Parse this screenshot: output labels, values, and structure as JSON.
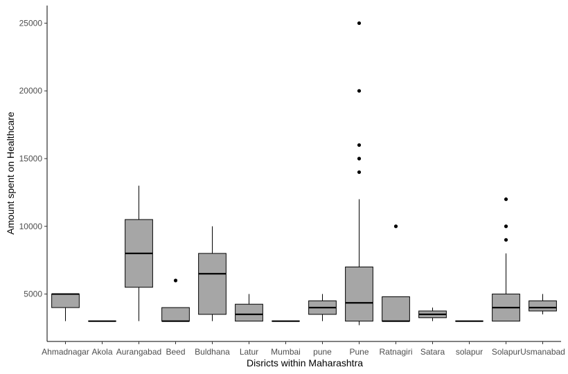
{
  "chart_data": {
    "type": "boxplot",
    "title": "",
    "xlabel": "Disricts within Maharashtra",
    "ylabel": "Amount spent on Healthcare",
    "ylim": [
      1500,
      26300
    ],
    "yticks": [
      5000,
      10000,
      15000,
      20000,
      25000
    ],
    "grid": false,
    "box_color": "#a6a6a6",
    "line_color": "#000000",
    "categories": [
      "Ahmadnagar",
      "Akola",
      "Aurangabad",
      "Beed",
      "Buldhana",
      "Latur",
      "Mumbai",
      "pune",
      "Pune",
      "Ratnagiri",
      "Satara",
      "solapur",
      "Solapur",
      "Usmanabad"
    ],
    "boxes": [
      {
        "category": "Ahmadnagar",
        "min": 3000,
        "q1": 4000,
        "median": 5000,
        "q3": 5000,
        "max": 5000,
        "outliers": []
      },
      {
        "category": "Akola",
        "min": 3000,
        "q1": 3000,
        "median": 3000,
        "q3": 3000,
        "max": 3000,
        "outliers": []
      },
      {
        "category": "Aurangabad",
        "min": 3000,
        "q1": 5500,
        "median": 8000,
        "q3": 10500,
        "max": 13000,
        "outliers": []
      },
      {
        "category": "Beed",
        "min": 3000,
        "q1": 3000,
        "median": 3000,
        "q3": 4000,
        "max": 4000,
        "outliers": [
          6000
        ]
      },
      {
        "category": "Buldhana",
        "min": 3000,
        "q1": 3500,
        "median": 6500,
        "q3": 8000,
        "max": 10000,
        "outliers": []
      },
      {
        "category": "Latur",
        "min": 3000,
        "q1": 3000,
        "median": 3500,
        "q3": 4250,
        "max": 5000,
        "outliers": []
      },
      {
        "category": "Mumbai",
        "min": 3000,
        "q1": 3000,
        "median": 3000,
        "q3": 3000,
        "max": 3000,
        "outliers": []
      },
      {
        "category": "pune",
        "min": 3000,
        "q1": 3500,
        "median": 4000,
        "q3": 4500,
        "max": 5000,
        "outliers": []
      },
      {
        "category": "Pune",
        "min": 2700,
        "q1": 3000,
        "median": 4350,
        "q3": 7000,
        "max": 12000,
        "outliers": [
          14000,
          15000,
          16000,
          20000,
          25000
        ]
      },
      {
        "category": "Ratnagiri",
        "min": 3000,
        "q1": 3000,
        "median": 3000,
        "q3": 4800,
        "max": 4800,
        "outliers": [
          10000
        ]
      },
      {
        "category": "Satara",
        "min": 3000,
        "q1": 3250,
        "median": 3500,
        "q3": 3750,
        "max": 4000,
        "outliers": []
      },
      {
        "category": "solapur",
        "min": 3000,
        "q1": 3000,
        "median": 3000,
        "q3": 3000,
        "max": 3000,
        "outliers": []
      },
      {
        "category": "Solapur",
        "min": 3000,
        "q1": 3000,
        "median": 4000,
        "q3": 5000,
        "max": 8000,
        "outliers": [
          9000,
          10000,
          12000
        ]
      },
      {
        "category": "Usmanabad",
        "min": 3500,
        "q1": 3750,
        "median": 4000,
        "q3": 4500,
        "max": 5000,
        "outliers": []
      }
    ]
  }
}
